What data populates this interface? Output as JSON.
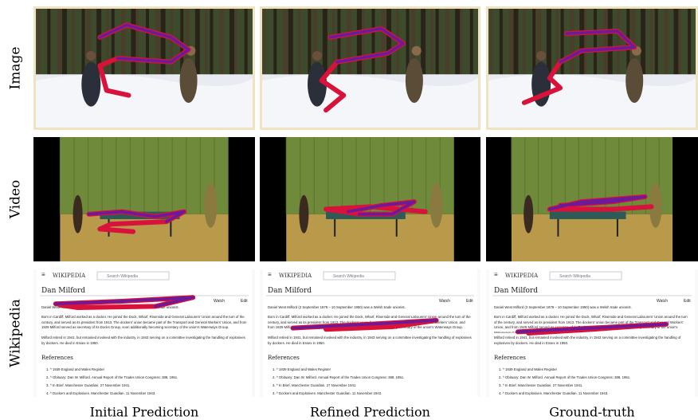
{
  "row_labels": [
    "Image",
    "Video",
    "Wikipedia"
  ],
  "column_labels": [
    "Initial Prediction",
    "Refined Prediction",
    "Ground-truth"
  ],
  "wikipedia": {
    "logo": "WIKIPEDIA",
    "search": "Search Wikipedia",
    "title": "Dan Milford",
    "watch": "Watch",
    "edit": "Edit",
    "paragraphs": [
      "Daniel West Milford (3 September 1878 – 10 September 1950) was a Welsh trade unionist.",
      "Born in Cardiff, Milford worked as a docker. He joined the Dock, Wharf, Riverside and General Labourers' Union around the turn of the century, and served as its president from 1913. The dockers' union became part of the Transport and General Workers' Union, and from 1929 Milford served as secretary of its Docks Group, soon additionally becoming secretary of the union's Waterways Group.",
      "Milford retired in 1941, but remained involved with the industry, in 1943 serving on a committee investigating the handling of explosives by dockers. He died in Essex in 1950."
    ],
    "references": "References",
    "refs": [
      "1. ^ 1939 England and Wales Register",
      "2. ^ Obituary: Dan W. Milford. Annual Report of the Trades Union Congress: 388. 1951.",
      "3. ^ In Brief. Manchester Guardian. 27 November 1941.",
      "4. ^ Dockers and Explosives. Manchester Guardian. 11 November 1943."
    ]
  }
}
